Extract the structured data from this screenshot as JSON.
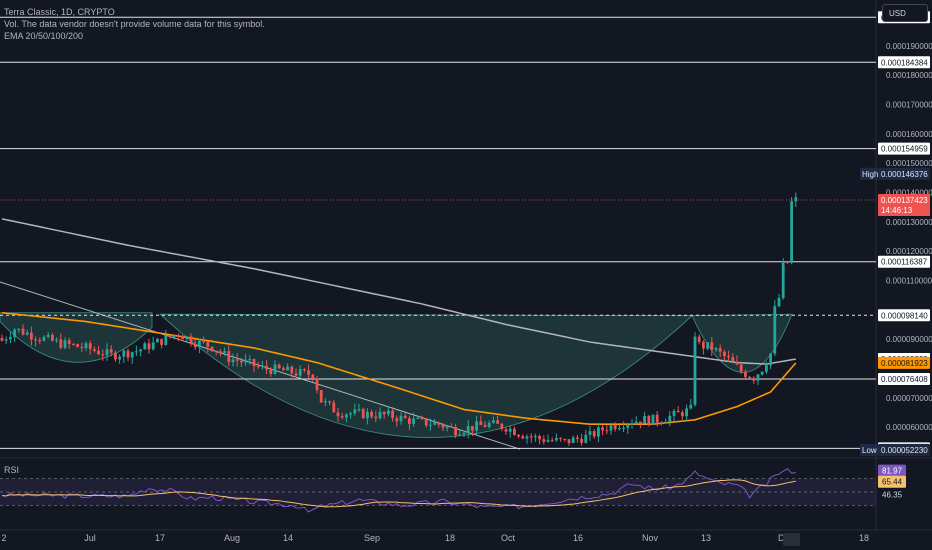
{
  "legend": {
    "symbol_line": "Terra Classic, 1D, CRYPTO",
    "vol_line": "Vol. The data vendor doesn't provide volume data for this symbol.",
    "ema_line": "EMA 20/50/100/200"
  },
  "currency_button": "USD",
  "rsi_title": "RSI",
  "colors": {
    "background": "#131722",
    "up": "#26a69a",
    "down": "#ef5350",
    "ema_orange": "#ff9800",
    "ema_gray": "#b2b5be",
    "rsi_line": "#7e57c2",
    "rsi_ma": "#f5c26b",
    "cup_fill": "#2a5c54"
  },
  "chart_data": {
    "type": "candlestick",
    "x_ticks": [
      "2",
      "Jul",
      "17",
      "Aug",
      "14",
      "Sep",
      "18",
      "Oct",
      "16",
      "Nov",
      "13",
      "Dec",
      "18"
    ],
    "y_ticks": [
      "0.000190000",
      "0.000180000",
      "0.000170000",
      "0.000160000",
      "0.000150000",
      "0.000140000",
      "0.000130000",
      "0.000120000",
      "0.000110000",
      "0.000090000",
      "0.000070000",
      "0.000060000"
    ],
    "ylim": [
      5.05e-05,
      0.0002005
    ],
    "horizontal_levels": [
      {
        "value": 0.000199715,
        "label": "0.000199715",
        "style": "solid"
      },
      {
        "value": 0.000184384,
        "label": "0.000184384",
        "style": "solid"
      },
      {
        "value": 0.000154959,
        "label": "0.000154959",
        "style": "solid"
      },
      {
        "value": 0.000116387,
        "label": "0.000116387",
        "style": "solid"
      },
      {
        "value": 9.814e-05,
        "label": "0.000098140",
        "style": "dashed"
      },
      {
        "value": 7.6408e-05,
        "label": "0.000076408",
        "style": "solid"
      },
      {
        "value": 5.2758e-05,
        "label": "0.000052758",
        "style": "solid"
      }
    ],
    "price_badges": [
      {
        "value": 8.3222e-05,
        "label": "0.000083222",
        "kind": "ema-gray"
      },
      {
        "value": 8.1923e-05,
        "label": "0.000081923",
        "kind": "ema-orange"
      },
      {
        "value": 0.000137423,
        "label": "0.000137423",
        "kind": "last",
        "countdown": "14:46:13"
      },
      {
        "value": 0.000146376,
        "label": "0.000146376",
        "kind": "high",
        "tag": "High"
      },
      {
        "value": 5.223e-05,
        "label": "0.000052230",
        "kind": "low",
        "tag": "Low"
      }
    ],
    "rsi": {
      "levels": [
        70,
        50,
        30
      ],
      "ylim": [
        5,
        95
      ],
      "badges": [
        {
          "value": 81.97,
          "label": "81.97",
          "kind": "rsi"
        },
        {
          "value": 65.44,
          "label": "65.44",
          "kind": "rsi-ma"
        },
        {
          "value": 46.35,
          "label": "46.35",
          "kind": "plain"
        }
      ]
    },
    "series_anchors": {
      "price": [
        [
          0,
          8.95e-05
        ],
        [
          3,
          9.35e-05
        ],
        [
          8,
          9.1e-05
        ],
        [
          14,
          8.85e-05
        ],
        [
          20,
          8.7e-05
        ],
        [
          26,
          8.45e-05
        ],
        [
          32,
          8.6e-05
        ],
        [
          38,
          8.95e-05
        ],
        [
          42,
          9.2e-05
        ],
        [
          46,
          8.9e-05
        ],
        [
          50,
          8.75e-05
        ],
        [
          54,
          8.35e-05
        ],
        [
          58,
          8.2e-05
        ],
        [
          62,
          8e-05
        ],
        [
          66,
          7.95e-05
        ],
        [
          70,
          7.85e-05
        ],
        [
          74,
          7.8e-05
        ],
        [
          76,
          6.9e-05
        ],
        [
          80,
          6.5e-05
        ],
        [
          86,
          6.45e-05
        ],
        [
          92,
          6.4e-05
        ],
        [
          98,
          6.2e-05
        ],
        [
          104,
          6.1e-05
        ],
        [
          108,
          5.9e-05
        ],
        [
          112,
          6e-05
        ],
        [
          116,
          6.1e-05
        ],
        [
          120,
          6e-05
        ],
        [
          124,
          5.75e-05
        ],
        [
          128,
          5.6e-05
        ],
        [
          134,
          5.5e-05
        ],
        [
          140,
          5.7e-05
        ],
        [
          144,
          6e-05
        ],
        [
          148,
          6.15e-05
        ],
        [
          152,
          6.25e-05
        ],
        [
          156,
          6.25e-05
        ],
        [
          160,
          6.4e-05
        ],
        [
          164,
          6.6e-05
        ],
        [
          165,
          9.2e-05
        ],
        [
          166,
          8.8e-05
        ],
        [
          169,
          8.7e-05
        ],
        [
          173,
          8.3e-05
        ],
        [
          176,
          7.9e-05
        ],
        [
          179,
          7.7e-05
        ],
        [
          181,
          8e-05
        ],
        [
          183,
          8.5e-05
        ],
        [
          184,
          0.0001
        ],
        [
          185,
          0.000104
        ],
        [
          186,
          0.000115
        ],
        [
          187,
          0.000116
        ],
        [
          188,
          0.0001365
        ],
        [
          189,
          0.0001374
        ]
      ],
      "ema_orange": [
        [
          0,
          9.9e-05
        ],
        [
          20,
          9.6e-05
        ],
        [
          40,
          9.15e-05
        ],
        [
          60,
          8.7e-05
        ],
        [
          75,
          8.2e-05
        ],
        [
          95,
          7.3e-05
        ],
        [
          110,
          6.6e-05
        ],
        [
          125,
          6.3e-05
        ],
        [
          140,
          6.1e-05
        ],
        [
          155,
          6.1e-05
        ],
        [
          165,
          6.25e-05
        ],
        [
          175,
          6.7e-05
        ],
        [
          183,
          7.2e-05
        ],
        [
          189,
          8.19e-05
        ]
      ],
      "ema_gray": [
        [
          0,
          0.000131
        ],
        [
          30,
          0.000122
        ],
        [
          60,
          0.000114
        ],
        [
          80,
          0.000108
        ],
        [
          100,
          0.000102
        ],
        [
          120,
          9.5e-05
        ],
        [
          140,
          8.9e-05
        ],
        [
          160,
          8.5e-05
        ],
        [
          175,
          8.2e-05
        ],
        [
          182,
          8.15e-05
        ],
        [
          189,
          8.32e-05
        ]
      ],
      "rsi": [
        [
          0,
          46
        ],
        [
          10,
          45
        ],
        [
          20,
          44
        ],
        [
          30,
          44
        ],
        [
          35,
          56
        ],
        [
          40,
          52
        ],
        [
          45,
          40
        ],
        [
          50,
          42
        ],
        [
          60,
          35
        ],
        [
          70,
          30
        ],
        [
          73,
          20
        ],
        [
          76,
          28
        ],
        [
          85,
          38
        ],
        [
          95,
          30
        ],
        [
          105,
          36
        ],
        [
          115,
          27
        ],
        [
          125,
          29
        ],
        [
          135,
          40
        ],
        [
          145,
          48
        ],
        [
          150,
          62
        ],
        [
          155,
          55
        ],
        [
          160,
          58
        ],
        [
          163,
          68
        ],
        [
          165,
          79
        ],
        [
          170,
          64
        ],
        [
          175,
          60
        ],
        [
          178,
          45
        ],
        [
          182,
          62
        ],
        [
          185,
          79
        ],
        [
          187,
          82
        ],
        [
          189,
          82
        ]
      ]
    }
  }
}
